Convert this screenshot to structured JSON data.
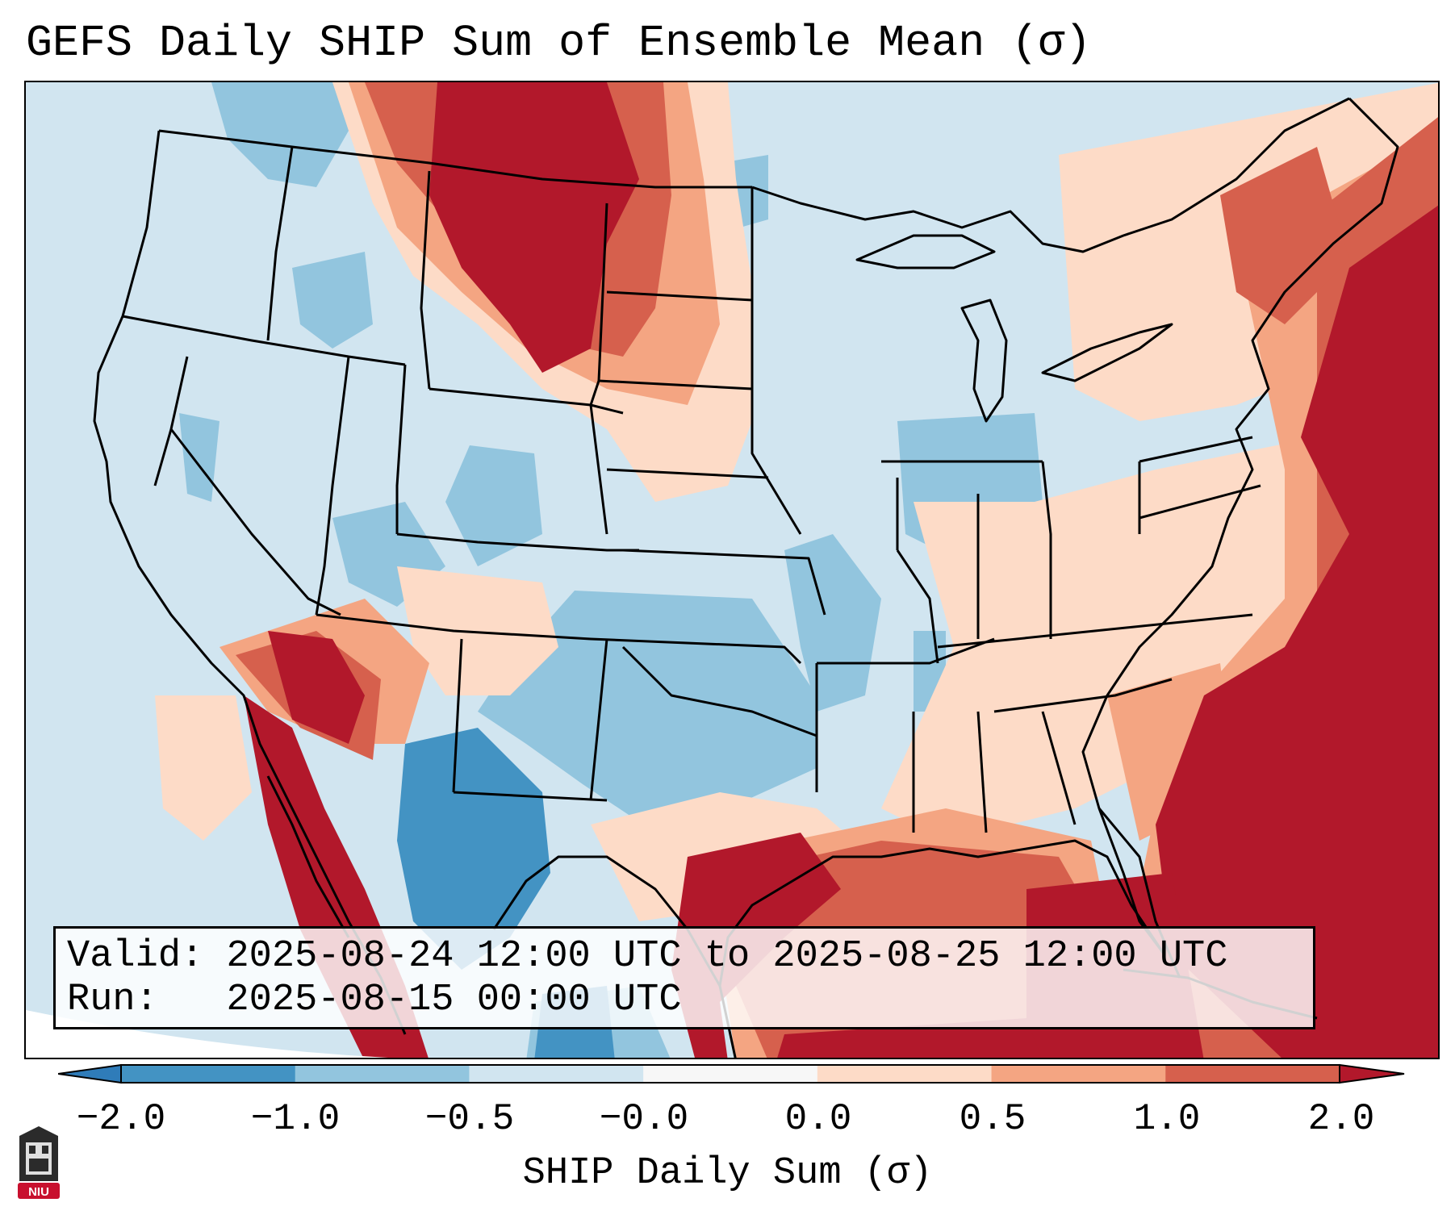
{
  "title": "GEFS Daily SHIP Sum of Ensemble Mean (σ)",
  "info": {
    "valid_label": "Valid:",
    "valid_value": "2025-08-24 12:00 UTC to 2025-08-25 12:00 UTC",
    "run_label": "Run:",
    "run_value": "2025-08-15 00:00 UTC"
  },
  "colorbar": {
    "label": "SHIP Daily Sum (σ)",
    "ticks": [
      "−2.0",
      "−1.0",
      "−0.5",
      "−0.0",
      "0.0",
      "0.5",
      "1.0",
      "2.0"
    ],
    "colors": [
      "#2f7cb9",
      "#4393c3",
      "#92c5de",
      "#d1e5f0",
      "#fddbc7",
      "#f4a582",
      "#d6604d",
      "#b2182b"
    ],
    "extend": "both"
  },
  "map": {
    "region": "Continental United States",
    "fields": [
      {
        "area": "Northern Rockies / Montana",
        "category": "1.0 to 2.0"
      },
      {
        "area": "Western Atlantic / Gulf of Mexico",
        "category": "1.0 to 2.0"
      },
      {
        "area": "Southwest / Arizona",
        "category": "1.0 to 2.0"
      },
      {
        "area": "Texas / Southern Plains",
        "category": "-1.0 to -0.5"
      },
      {
        "area": "Northern Mexico",
        "category": "-2.0 to -1.0"
      },
      {
        "area": "Midwest",
        "category": "-0.5 to -0.0"
      }
    ]
  },
  "logo": {
    "text": "NIU",
    "color": "#c8102e"
  }
}
